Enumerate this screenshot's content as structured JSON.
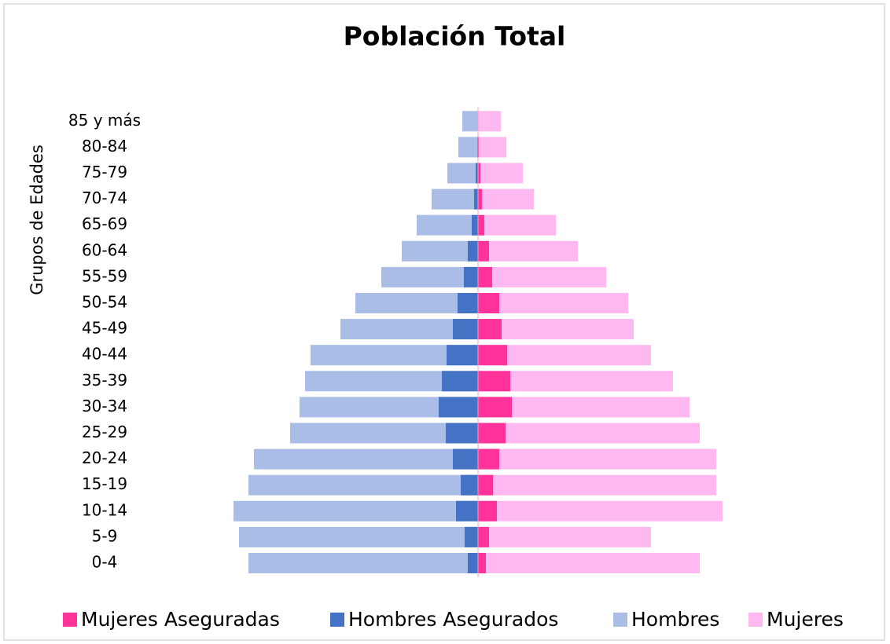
{
  "chart_data": {
    "type": "pyramid",
    "title": "Población Total",
    "y_label": "Grupos de Edades",
    "categories": [
      "0-4",
      "5-9",
      "10-14",
      "15-19",
      "20-24",
      "25-29",
      "30-34",
      "35-39",
      "40-44",
      "45-49",
      "50-54",
      "55-59",
      "60-64",
      "65-69",
      "70-74",
      "75-79",
      "80-84",
      "85 y más"
    ],
    "series": [
      {
        "name": "Mujeres Aseguradas",
        "color": "#ff3399",
        "values": [
          10,
          14,
          24,
          19,
          27,
          35,
          43,
          41,
          37,
          30,
          27,
          18,
          14,
          8,
          5,
          3,
          1,
          0
        ]
      },
      {
        "name": "Hombres Asegurados",
        "color": "#4472c4",
        "values": [
          -13,
          -17,
          -28,
          -22,
          -32,
          -41,
          -50,
          -46,
          -40,
          -32,
          -26,
          -18,
          -13,
          -8,
          -5,
          -3,
          -1,
          0
        ]
      },
      {
        "name": "Hombres",
        "color": "#a9bde6",
        "values": [
          -292,
          -304,
          -311,
          -292,
          -285,
          -239,
          -227,
          -220,
          -213,
          -175,
          -156,
          -123,
          -97,
          -78,
          -59,
          -39,
          -25,
          -20
        ]
      },
      {
        "name": "Mujeres",
        "color": "#ffb9f0",
        "values": [
          282,
          220,
          311,
          303,
          303,
          282,
          269,
          248,
          220,
          198,
          191,
          163,
          127,
          99,
          71,
          57,
          36,
          29
        ]
      }
    ],
    "xlim": [
      -320,
      320
    ]
  }
}
